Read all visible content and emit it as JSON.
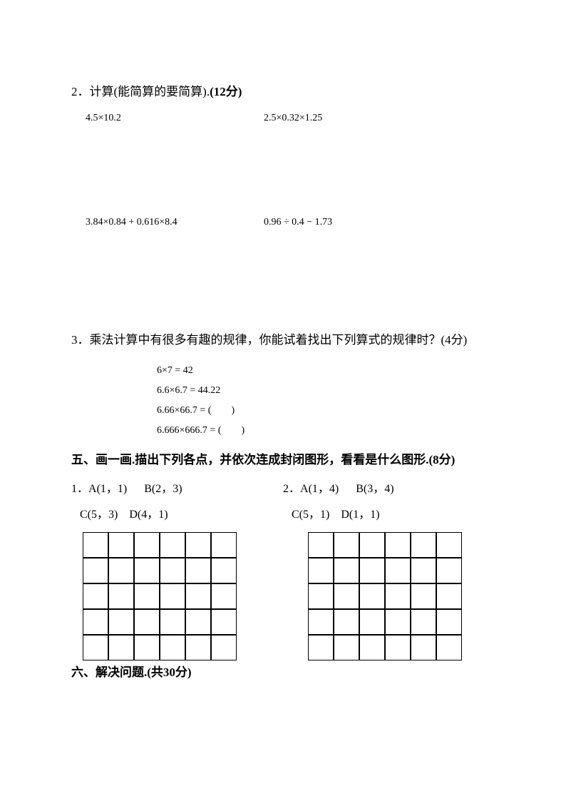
{
  "q2": {
    "heading_num": "2．",
    "heading_text": "计算(能简算的要简算).",
    "heading_points": "(12分)",
    "expr1": "4.5×10.2",
    "expr2": "2.5×0.32×1.25",
    "expr3": "3.84×0.84 + 0.616×8.4",
    "expr4": "0.96 ÷ 0.4 − 1.73"
  },
  "q3": {
    "heading_num": "3．",
    "heading_text": "乘法计算中有很多有趣的规律，你能试着找出下列算式的规律时？",
    "heading_points": "(4分)",
    "line1": "6×7 = 42",
    "line2": "6.6×6.7 = 44.22",
    "line3": "6.66×66.7 = (  )",
    "line4": "6.666×666.7 = (  )"
  },
  "section5": {
    "label": "五、画一画.描出下列各点，并依次连成封闭图形，看看是什么图形.(8分)",
    "p1": {
      "num": "1．",
      "A": "A(1，1)",
      "B": "B(2，3)",
      "C": "C(5，3)",
      "D": "D(4，1)"
    },
    "p2": {
      "num": "2．",
      "A": "A(1，4)",
      "B": "B(3，4)",
      "C": "C(5，1)",
      "D": "D(1，1)"
    }
  },
  "section6": {
    "label": "六、解决问题.(共30分)"
  },
  "grid": {
    "cols": 6,
    "rows": 5,
    "cell_size": 36,
    "border_color": "#000000"
  }
}
